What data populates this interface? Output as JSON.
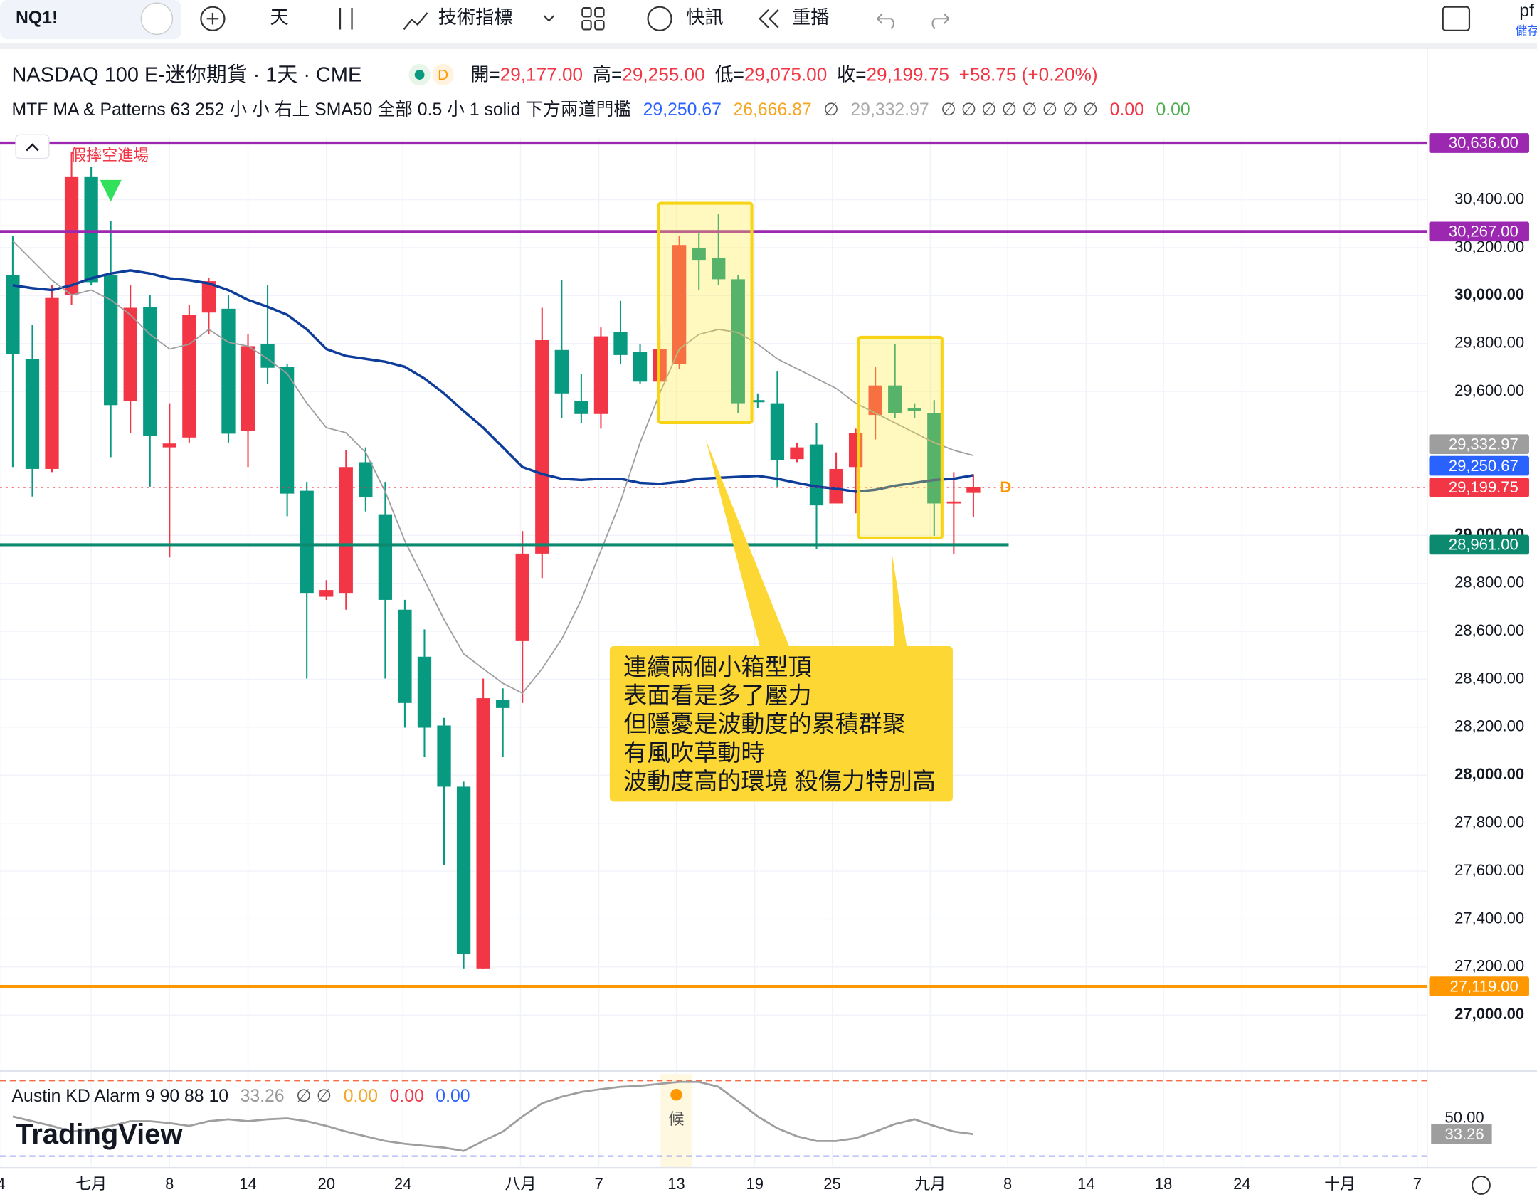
{
  "toolbar": {
    "symbol": "NQ1!",
    "interval": "天",
    "indicators": "技術指標",
    "alerts": "快訊",
    "replay": "重播",
    "user": "pf",
    "save": "儲存"
  },
  "header": {
    "symbol": "NASDAQ 100 E-迷你期貨 · 1天 · CME",
    "badge": "D",
    "ohlc": [
      {
        "label": "開=",
        "value": "29,177.00"
      },
      {
        "label": "高=",
        "value": "29,255.00"
      },
      {
        "label": "低=",
        "value": "29,075.00"
      },
      {
        "label": "收=",
        "value": "29,199.75"
      }
    ],
    "change": "+58.75 (+0.20%)"
  },
  "indicator": {
    "name": "MTF MA & Patterns 63 252 小 小 右上 SMA50 全部 0.5 小 1 solid 下方兩道門檻",
    "values": [
      {
        "text": "29,250.67",
        "color": "#2962ff"
      },
      {
        "text": "26,666.87",
        "color": "#f5a623"
      },
      {
        "text": "∅",
        "color": "#555"
      },
      {
        "text": "29,332.97",
        "color": "#aaa"
      },
      {
        "text": "∅ ∅ ∅ ∅ ∅ ∅ ∅ ∅",
        "color": "#555"
      },
      {
        "text": "0.00",
        "color": "#f23645"
      },
      {
        "text": "0.00",
        "color": "#4caf50"
      }
    ]
  },
  "logo": "TradingView",
  "chart_data": {
    "type": "candlestick",
    "up_color": "#f23645",
    "down_color": "#089981",
    "x": [
      0,
      1,
      2,
      3,
      4,
      5,
      6,
      7,
      8,
      9,
      10,
      11,
      12,
      13,
      14,
      15,
      16,
      17,
      18,
      19,
      20,
      21,
      22,
      23,
      24,
      25,
      26,
      27,
      28,
      29,
      30,
      31,
      32,
      33,
      34,
      35,
      36,
      37,
      38,
      39,
      40,
      41,
      42,
      43,
      44,
      45,
      46,
      47,
      48,
      49
    ],
    "open": [
      30084,
      29736,
      29277,
      30002,
      30494,
      30084,
      29560,
      29953,
      29367,
      29408,
      29929,
      29945,
      29436,
      29797,
      29703,
      29186,
      28744,
      28760,
      29305,
      29088,
      28690,
      28494,
      28207,
      27952,
      27194,
      28313,
      28559,
      28924,
      29773,
      29560,
      29506,
      29847,
      29765,
      29641,
      29715,
      30199,
      30158,
      30068,
      29564,
      29551,
      29318,
      29379,
      29133,
      29285,
      29502,
      29625,
      29531,
      29510,
      29137,
      29177
    ],
    "high": [
      30248,
      29879,
      30043,
      30597,
      30535,
      30310,
      30043,
      30002,
      29551,
      29961,
      30072,
      30002,
      29838,
      30043,
      29715,
      29223,
      28813,
      29355,
      29367,
      29223,
      28731,
      28608,
      28239,
      27973,
      28403,
      28362,
      29018,
      29949,
      30064,
      29674,
      29867,
      29978,
      29797,
      29879,
      30248,
      30269,
      30339,
      30084,
      29592,
      29683,
      29387,
      29469,
      29346,
      29445,
      29703,
      29797,
      29551,
      29564,
      29264,
      29255
    ],
    "low": [
      29285,
      29162,
      29264,
      29961,
      30043,
      29326,
      29428,
      29203,
      28908,
      29387,
      29838,
      29387,
      29285,
      29633,
      29080,
      28403,
      28731,
      28690,
      29100,
      28403,
      28198,
      28075,
      27624,
      27194,
      27194,
      28075,
      28301,
      28822,
      29490,
      29469,
      29445,
      29715,
      29633,
      29633,
      29695,
      30023,
      30043,
      29510,
      29531,
      29203,
      29305,
      28944,
      29133,
      29092,
      29400,
      29490,
      29490,
      28998,
      28924,
      29075
    ],
    "close": [
      29756,
      29277,
      29990,
      30494,
      30056,
      29543,
      29949,
      29416,
      29383,
      29920,
      30060,
      29424,
      29789,
      29699,
      29174,
      28760,
      28772,
      29285,
      29158,
      28731,
      28301,
      28198,
      27952,
      27255,
      28321,
      28280,
      28924,
      29814,
      29592,
      29506,
      29830,
      29752,
      29641,
      29777,
      30211,
      30146,
      30068,
      29551,
      29555,
      29314,
      29367,
      29125,
      29277,
      29428,
      29625,
      29510,
      29519,
      29133,
      29141,
      29199.75
    ],
    "series": [
      {
        "color": "#0d3c9b",
        "width": 2.5,
        "values": [
          30043,
          30031,
          30023,
          30043,
          30072,
          30092,
          30105,
          30092,
          30072,
          30064,
          30051,
          30023,
          29982,
          29953,
          29920,
          29859,
          29777,
          29748,
          29736,
          29724,
          29703,
          29654,
          29592,
          29518,
          29449,
          29367,
          29285,
          29256,
          29236,
          29231,
          29236,
          29236,
          29219,
          29215,
          29223,
          29236,
          29240,
          29244,
          29248,
          29236,
          29219,
          29203,
          29195,
          29182,
          29190,
          29207,
          29219,
          29231,
          29236,
          29250.67
        ]
      },
      {
        "color": "#9e9e9e",
        "width": 1.3,
        "values": [
          30228,
          30146,
          30064,
          30002,
          30023,
          29982,
          29920,
          29838,
          29777,
          29797,
          29859,
          29805,
          29789,
          29736,
          29674,
          29551,
          29449,
          29428,
          29346,
          29182,
          28977,
          28813,
          28649,
          28506,
          28444,
          28383,
          28342,
          28444,
          28567,
          28731,
          28936,
          29141,
          29387,
          29592,
          29777,
          29838,
          29859,
          29846,
          29797,
          29736,
          29695,
          29654,
          29613,
          29551,
          29510,
          29469,
          29428,
          29387,
          29355,
          29332.97
        ]
      }
    ],
    "xlim": [
      -0.65,
      72.15
    ],
    "xticks": [
      {
        "value": -0.6,
        "label": "4"
      },
      {
        "value": 4,
        "label": "七月"
      },
      {
        "value": 8,
        "label": "8"
      },
      {
        "value": 12,
        "label": "14"
      },
      {
        "value": 16,
        "label": "20"
      },
      {
        "value": 19.9,
        "label": "24"
      },
      {
        "value": 25.9,
        "label": "八月"
      },
      {
        "value": 29.9,
        "label": "7"
      },
      {
        "value": 33.85,
        "label": "13"
      },
      {
        "value": 37.85,
        "label": "19"
      },
      {
        "value": 41.8,
        "label": "25"
      },
      {
        "value": 46.8,
        "label": "九月"
      },
      {
        "value": 50.75,
        "label": "8"
      },
      {
        "value": 54.75,
        "label": "14"
      },
      {
        "value": 58.7,
        "label": "18"
      },
      {
        "value": 62.7,
        "label": "24"
      },
      {
        "value": 67.7,
        "label": "十月"
      },
      {
        "value": 71.65,
        "label": "7"
      }
    ],
    "ylim": [
      26770,
      30970
    ],
    "yticks": [
      {
        "value": 27000,
        "label": "27,000.00"
      },
      {
        "value": 27200,
        "label": "27,200.00"
      },
      {
        "value": 27400,
        "label": "27,400.00"
      },
      {
        "value": 27600,
        "label": "27,600.00"
      },
      {
        "value": 27800,
        "label": "27,800.00"
      },
      {
        "value": 28000,
        "label": "28,000.00"
      },
      {
        "value": 28200,
        "label": "28,200.00"
      },
      {
        "value": 28400,
        "label": "28,400.00"
      },
      {
        "value": 28600,
        "label": "28,600.00"
      },
      {
        "value": 28800,
        "label": "28,800.00"
      },
      {
        "value": 29000,
        "label": "29,000.00"
      },
      {
        "value": 29600,
        "label": "29,600.00"
      },
      {
        "value": 29800,
        "label": "29,800.00"
      },
      {
        "value": 30000,
        "label": "30,000.00"
      },
      {
        "value": 30200,
        "label": "30,200.00"
      },
      {
        "value": 30400,
        "label": "30,400.00"
      }
    ],
    "grid": true,
    "hlines": [
      {
        "value": 30636,
        "label": "30,636.00",
        "color": "#9c27b0",
        "end": 72.15
      },
      {
        "value": 30267,
        "label": "30,267.00",
        "color": "#9c27b0",
        "end": 72.15
      },
      {
        "value": 28961,
        "label": "28,961.00",
        "color": "#0b8a6f",
        "end": 50.8
      },
      {
        "value": 27119,
        "label": "27,119.00",
        "color": "#ff9800",
        "end": 72.15
      }
    ],
    "boxes": [
      {
        "x": [
          32.95,
          37.7
        ],
        "y": [
          30385,
          29470
        ]
      },
      {
        "x": [
          43.15,
          47.4
        ],
        "y": [
          29826,
          28989
        ]
      }
    ],
    "signal_text": "假摔空進場",
    "marker": "D",
    "callout": [
      "連續兩個小箱型頂",
      "表面看是多了壓力",
      "但隱憂是波動度的累積群聚",
      "有風吹草動時",
      "波動度高的環境 殺傷力特別高"
    ],
    "kd": {
      "name": "Austin KD Alarm 9 90 88 10",
      "texts": [
        {
          "text": "33.26",
          "color": "#999"
        },
        {
          "text": "∅ ∅",
          "color": "#555"
        },
        {
          "text": "0.00",
          "color": "#f5a623"
        },
        {
          "text": "0.00",
          "color": "#f23645"
        },
        {
          "text": "0.00",
          "color": "#2962ff"
        }
      ],
      "color": "#9e9e9e",
      "ylim": [
        0,
        97
      ],
      "yticks": [
        {
          "value": 50,
          "label": "50.00"
        }
      ],
      "levels": [
        {
          "value": 90,
          "color": "#f26d45"
        },
        {
          "value": 10,
          "color": "#5b6cf0"
        }
      ],
      "signal": "候",
      "signal_x": 33.85,
      "values": [
        52,
        47,
        42,
        36,
        38.5,
        42,
        47,
        47,
        45,
        42,
        47,
        49,
        47,
        49,
        50,
        47,
        42,
        36,
        31,
        26,
        23,
        21,
        19,
        15.5,
        26,
        36,
        52,
        66,
        73,
        78,
        81,
        83.5,
        84.5,
        86.6,
        88.7,
        88.7,
        83.5,
        68,
        52,
        39.5,
        31,
        26,
        26,
        29,
        36,
        44,
        49,
        42,
        36,
        33.26
      ]
    }
  }
}
